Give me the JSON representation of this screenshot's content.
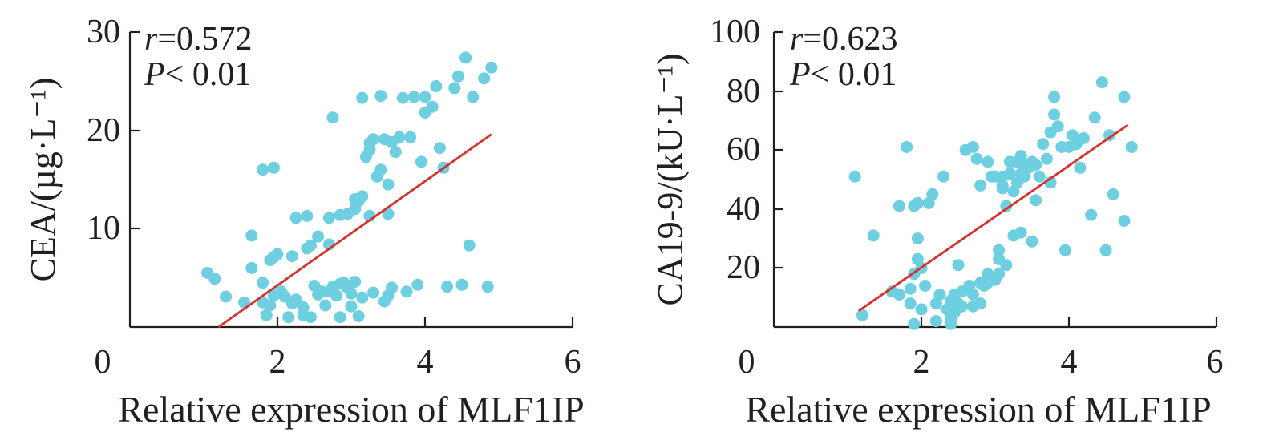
{
  "colors": {
    "points": "#6dcfe0",
    "fit_line": "#d9302c",
    "axis": "#231f20"
  },
  "chart_data": [
    {
      "type": "scatter",
      "title": "",
      "xlabel": "Relative expression of MLF1IP",
      "ylabel": "CEA/(µg·L⁻¹)",
      "xlim": [
        0,
        6
      ],
      "ylim": [
        0,
        30
      ],
      "xticks": [
        "0",
        "2",
        "4",
        "6"
      ],
      "yticks": [
        "10",
        "20",
        "30"
      ],
      "annotation": {
        "r_label": "r",
        "r_value": "=0.572",
        "p_label": "P",
        "p_value": "< 0.01"
      },
      "grid": false,
      "fit_line": {
        "x": [
          1.2,
          4.9
        ],
        "y": [
          0.0,
          19.6
        ]
      },
      "points": [
        [
          1.05,
          5.5
        ],
        [
          1.15,
          4.9
        ],
        [
          1.3,
          3.1
        ],
        [
          1.55,
          2.5
        ],
        [
          1.65,
          9.3
        ],
        [
          1.65,
          6.0
        ],
        [
          1.8,
          4.5
        ],
        [
          1.8,
          16.0
        ],
        [
          1.95,
          16.2
        ],
        [
          1.8,
          2.5
        ],
        [
          1.85,
          1.2
        ],
        [
          1.9,
          2.2
        ],
        [
          1.9,
          6.8
        ],
        [
          1.95,
          7.1
        ],
        [
          2.0,
          7.4
        ],
        [
          1.95,
          3.2
        ],
        [
          2.05,
          3.6
        ],
        [
          2.1,
          3.1
        ],
        [
          2.15,
          1.0
        ],
        [
          2.2,
          2.4
        ],
        [
          2.2,
          7.2
        ],
        [
          2.25,
          2.8
        ],
        [
          2.25,
          11.1
        ],
        [
          2.35,
          2.0
        ],
        [
          2.35,
          1.2
        ],
        [
          2.4,
          11.3
        ],
        [
          2.4,
          8.0
        ],
        [
          2.45,
          8.3
        ],
        [
          2.45,
          1.0
        ],
        [
          2.5,
          4.2
        ],
        [
          2.55,
          9.2
        ],
        [
          2.55,
          3.3
        ],
        [
          2.6,
          3.6
        ],
        [
          2.65,
          2.2
        ],
        [
          2.7,
          3.6
        ],
        [
          2.7,
          8.4
        ],
        [
          2.7,
          11.1
        ],
        [
          2.75,
          21.3
        ],
        [
          2.75,
          4.1
        ],
        [
          2.8,
          3.2
        ],
        [
          2.85,
          4.4
        ],
        [
          2.85,
          11.4
        ],
        [
          2.85,
          1.0
        ],
        [
          2.9,
          4.5
        ],
        [
          2.95,
          4.0
        ],
        [
          2.95,
          11.5
        ],
        [
          3.0,
          2.1
        ],
        [
          3.0,
          3.4
        ],
        [
          3.05,
          4.6
        ],
        [
          3.05,
          12.0
        ],
        [
          3.05,
          13.0
        ],
        [
          3.1,
          1.1
        ],
        [
          3.1,
          12.8
        ],
        [
          3.15,
          3.0
        ],
        [
          3.15,
          13.3
        ],
        [
          3.15,
          23.3
        ],
        [
          3.2,
          17.3
        ],
        [
          3.25,
          11.3
        ],
        [
          3.25,
          18.0
        ],
        [
          3.25,
          18.7
        ],
        [
          3.3,
          19.1
        ],
        [
          3.3,
          3.5
        ],
        [
          3.35,
          15.3
        ],
        [
          3.4,
          16.0
        ],
        [
          3.4,
          23.5
        ],
        [
          3.45,
          19.1
        ],
        [
          3.45,
          2.6
        ],
        [
          3.5,
          3.2
        ],
        [
          3.5,
          11.5
        ],
        [
          3.5,
          14.5
        ],
        [
          3.55,
          18.8
        ],
        [
          3.55,
          4.0
        ],
        [
          3.6,
          17.8
        ],
        [
          3.65,
          19.3
        ],
        [
          3.7,
          23.3
        ],
        [
          3.75,
          3.6
        ],
        [
          3.8,
          19.3
        ],
        [
          3.85,
          23.4
        ],
        [
          3.9,
          4.3
        ],
        [
          3.95,
          16.8
        ],
        [
          4.0,
          21.8
        ],
        [
          4.0,
          23.4
        ],
        [
          4.1,
          22.4
        ],
        [
          4.15,
          24.5
        ],
        [
          4.2,
          18.2
        ],
        [
          4.25,
          16.2
        ],
        [
          4.3,
          4.1
        ],
        [
          4.4,
          24.3
        ],
        [
          4.45,
          25.5
        ],
        [
          4.5,
          4.3
        ],
        [
          4.55,
          27.4
        ],
        [
          4.6,
          8.3
        ],
        [
          4.65,
          23.4
        ],
        [
          4.8,
          25.3
        ],
        [
          4.85,
          4.1
        ],
        [
          4.9,
          26.4
        ]
      ]
    },
    {
      "type": "scatter",
      "title": "",
      "xlabel": "Relative expression of MLF1IP",
      "ylabel": "CA19-9/(kU·L⁻¹)",
      "xlim": [
        0,
        6
      ],
      "ylim": [
        0,
        100
      ],
      "xticks": [
        "0",
        "2",
        "4",
        "6"
      ],
      "yticks": [
        "20",
        "40",
        "60",
        "80",
        "100"
      ],
      "annotation": {
        "r_label": "r",
        "r_value": "=0.623",
        "p_label": "P",
        "p_value": "< 0.01"
      },
      "grid": false,
      "fit_line": {
        "x": [
          1.15,
          4.8
        ],
        "y": [
          5.5,
          68.5
        ]
      },
      "points": [
        [
          1.1,
          51
        ],
        [
          1.2,
          4
        ],
        [
          1.35,
          31
        ],
        [
          1.6,
          12
        ],
        [
          1.7,
          11
        ],
        [
          1.7,
          41
        ],
        [
          1.8,
          61
        ],
        [
          1.85,
          13
        ],
        [
          1.85,
          8
        ],
        [
          1.9,
          18
        ],
        [
          1.9,
          41
        ],
        [
          1.9,
          1
        ],
        [
          1.95,
          30
        ],
        [
          1.95,
          42
        ],
        [
          1.95,
          23
        ],
        [
          2.0,
          6
        ],
        [
          2.0,
          20
        ],
        [
          2.05,
          14
        ],
        [
          2.1,
          42
        ],
        [
          2.15,
          45
        ],
        [
          2.2,
          8
        ],
        [
          2.2,
          2
        ],
        [
          2.25,
          11
        ],
        [
          2.3,
          51
        ],
        [
          2.35,
          6
        ],
        [
          2.4,
          3
        ],
        [
          2.4,
          1
        ],
        [
          2.4,
          9
        ],
        [
          2.45,
          5
        ],
        [
          2.45,
          11
        ],
        [
          2.5,
          8
        ],
        [
          2.5,
          21
        ],
        [
          2.55,
          7
        ],
        [
          2.55,
          12
        ],
        [
          2.6,
          60
        ],
        [
          2.65,
          14
        ],
        [
          2.7,
          11
        ],
        [
          2.7,
          61
        ],
        [
          2.7,
          7
        ],
        [
          2.75,
          57
        ],
        [
          2.8,
          15
        ],
        [
          2.8,
          8
        ],
        [
          2.8,
          48
        ],
        [
          2.85,
          14
        ],
        [
          2.9,
          18
        ],
        [
          2.9,
          15
        ],
        [
          2.9,
          56
        ],
        [
          2.95,
          51
        ],
        [
          3.0,
          16
        ],
        [
          3.0,
          51
        ],
        [
          3.05,
          18
        ],
        [
          3.05,
          23
        ],
        [
          3.05,
          26
        ],
        [
          3.1,
          51
        ],
        [
          3.1,
          47
        ],
        [
          3.1,
          48
        ],
        [
          3.15,
          41
        ],
        [
          3.15,
          21
        ],
        [
          3.2,
          52
        ],
        [
          3.2,
          56
        ],
        [
          3.25,
          46
        ],
        [
          3.25,
          31
        ],
        [
          3.3,
          49
        ],
        [
          3.3,
          56
        ],
        [
          3.35,
          52
        ],
        [
          3.35,
          32
        ],
        [
          3.4,
          51
        ],
        [
          3.4,
          55
        ],
        [
          3.45,
          54
        ],
        [
          3.5,
          56
        ],
        [
          3.5,
          29
        ],
        [
          3.55,
          43
        ],
        [
          3.55,
          55
        ],
        [
          3.6,
          51
        ],
        [
          3.65,
          62
        ],
        [
          3.7,
          57
        ],
        [
          3.75,
          66
        ],
        [
          3.8,
          78
        ],
        [
          3.8,
          72
        ],
        [
          3.85,
          68
        ],
        [
          3.9,
          61
        ],
        [
          3.95,
          26
        ],
        [
          4.0,
          61
        ],
        [
          4.05,
          65
        ],
        [
          4.1,
          62
        ],
        [
          4.15,
          54
        ],
        [
          4.2,
          64
        ],
        [
          4.3,
          38
        ],
        [
          4.35,
          71
        ],
        [
          4.45,
          83
        ],
        [
          4.5,
          26
        ],
        [
          4.55,
          65
        ],
        [
          4.6,
          45
        ],
        [
          4.75,
          36
        ],
        [
          4.75,
          78
        ],
        [
          4.85,
          61
        ],
        [
          3.75,
          49
        ],
        [
          3.35,
          58
        ]
      ]
    }
  ]
}
